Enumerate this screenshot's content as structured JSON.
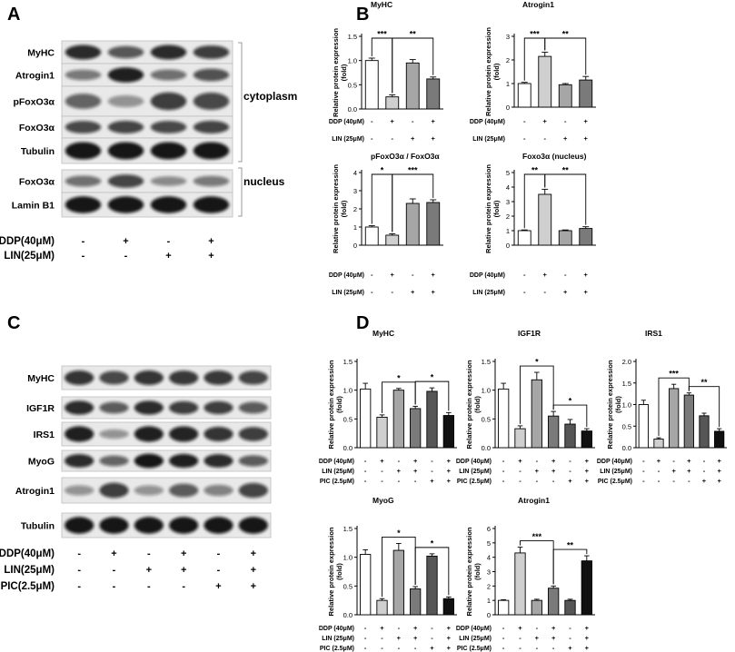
{
  "panel_letters": [
    "A",
    "B",
    "C",
    "D"
  ],
  "panelA": {
    "rows": [
      "MyHC",
      "Atrogin1",
      "pFoxO3α",
      "FoxO3α",
      "Tubulin",
      "FoxO3α",
      "Lamin B1"
    ],
    "group_cytoplasm": "cytoplasm",
    "group_nucleus": "nucleus",
    "treatments": [
      {
        "label": "DDP(40μM)",
        "signs": [
          "-",
          "+",
          "-",
          "+"
        ]
      },
      {
        "label": "LIN(25μM)",
        "signs": [
          "-",
          "-",
          "+",
          "+"
        ]
      }
    ],
    "band_intensity": [
      [
        0.85,
        0.62,
        0.85,
        0.75
      ],
      [
        0.45,
        0.9,
        0.5,
        0.65
      ],
      [
        0.55,
        0.3,
        0.75,
        0.7
      ],
      [
        0.7,
        0.72,
        0.7,
        0.72
      ],
      [
        0.95,
        0.95,
        0.95,
        0.95
      ],
      [
        0.5,
        0.72,
        0.35,
        0.45
      ],
      [
        0.95,
        0.95,
        0.95,
        0.95
      ]
    ]
  },
  "panelC": {
    "rows": [
      "MyHC",
      "IGF1R",
      "IRS1",
      "MyoG",
      "Atrogin1",
      "Tubulin"
    ],
    "treatments": [
      {
        "label": "DDP(40μM)",
        "signs": [
          "-",
          "+",
          "-",
          "+",
          "-",
          "+"
        ]
      },
      {
        "label": "LIN(25μM)",
        "signs": [
          "-",
          "-",
          "+",
          "+",
          "-",
          "+"
        ]
      },
      {
        "label": "PIC(2.5μM)",
        "signs": [
          "-",
          "-",
          "-",
          "-",
          "+",
          "+"
        ]
      }
    ],
    "band_intensity": [
      [
        0.8,
        0.7,
        0.8,
        0.78,
        0.78,
        0.72
      ],
      [
        0.85,
        0.6,
        0.85,
        0.75,
        0.75,
        0.6
      ],
      [
        0.9,
        0.3,
        0.9,
        0.88,
        0.8,
        0.75
      ],
      [
        0.85,
        0.55,
        0.95,
        0.9,
        0.85,
        0.6
      ],
      [
        0.3,
        0.75,
        0.3,
        0.6,
        0.4,
        0.72
      ],
      [
        0.95,
        0.95,
        0.95,
        0.95,
        0.95,
        0.95
      ]
    ]
  },
  "chart_data": [
    {
      "type": "bar",
      "title": "MyHC",
      "ylabel": "Relative protein expression\n(fold)",
      "ylim": [
        0,
        1.5
      ],
      "yticks": [
        "0.0",
        "0.5",
        "1.0",
        "1.5"
      ],
      "values": [
        1.0,
        0.25,
        0.95,
        0.62
      ],
      "errors": [
        0.05,
        0.04,
        0.07,
        0.04
      ],
      "treatments": [
        {
          "label": "DDP (40μM)",
          "signs": [
            "-",
            "+",
            "-",
            "+"
          ]
        },
        {
          "label": "LIN (25μM)",
          "signs": [
            "-",
            "-",
            "+",
            "+"
          ]
        }
      ],
      "sig": [
        {
          "a": 0,
          "b": 1,
          "label": "***"
        },
        {
          "a": 1,
          "b": 3,
          "label": "**"
        }
      ]
    },
    {
      "type": "bar",
      "title": "Atrogin1",
      "ylabel": "Relative protein expression\n(fold)",
      "ylim": [
        0,
        3
      ],
      "yticks": [
        "0",
        "1",
        "2",
        "3"
      ],
      "values": [
        1.0,
        2.15,
        0.95,
        1.15
      ],
      "errors": [
        0.05,
        0.18,
        0.05,
        0.15
      ],
      "treatments": [
        {
          "label": "DDP (40μM)",
          "signs": [
            "-",
            "+",
            "-",
            "+"
          ]
        },
        {
          "label": "LIN (25μM)",
          "signs": [
            "-",
            "-",
            "+",
            "+"
          ]
        }
      ],
      "sig": [
        {
          "a": 0,
          "b": 1,
          "label": "***"
        },
        {
          "a": 1,
          "b": 3,
          "label": "**"
        }
      ]
    },
    {
      "type": "bar",
      "title": "pFoxO3α / FoxO3α",
      "ylabel": "Relative protein expression\n(fold)",
      "ylim": [
        0,
        4
      ],
      "yticks": [
        "0",
        "1",
        "2",
        "3",
        "4"
      ],
      "values": [
        1.0,
        0.55,
        2.3,
        2.35
      ],
      "errors": [
        0.07,
        0.08,
        0.25,
        0.15
      ],
      "treatments": [
        {
          "label": "DDP (40μM)",
          "signs": [
            "-",
            "+",
            "-",
            "+"
          ]
        },
        {
          "label": "LIN (25μM)",
          "signs": [
            "-",
            "-",
            "+",
            "+"
          ]
        }
      ],
      "sig": [
        {
          "a": 0,
          "b": 1,
          "label": "*"
        },
        {
          "a": 1,
          "b": 3,
          "label": "***"
        }
      ]
    },
    {
      "type": "bar",
      "title": "Foxo3α (nucleus)",
      "ylabel": "Relative protein expression\n(fold)",
      "ylim": [
        0,
        5
      ],
      "yticks": [
        "0",
        "1",
        "2",
        "3",
        "4",
        "5"
      ],
      "values": [
        1.0,
        3.5,
        1.0,
        1.15
      ],
      "errors": [
        0.05,
        0.35,
        0.05,
        0.12
      ],
      "treatments": [
        {
          "label": "DDP (40μM)",
          "signs": [
            "-",
            "+",
            "-",
            "+"
          ]
        },
        {
          "label": "LIN (25μM)",
          "signs": [
            "-",
            "-",
            "+",
            "+"
          ]
        }
      ],
      "sig": [
        {
          "a": 0,
          "b": 1,
          "label": "**"
        },
        {
          "a": 1,
          "b": 3,
          "label": "**"
        }
      ]
    },
    {
      "type": "bar",
      "title": "MyHC",
      "ylabel": "Relative protein expression\n(fold)",
      "ylim": [
        0,
        1.5
      ],
      "yticks": [
        "0.0",
        "0.5",
        "1.0",
        "1.5"
      ],
      "values": [
        1.02,
        0.53,
        1.0,
        0.68,
        0.98,
        0.56
      ],
      "errors": [
        0.1,
        0.04,
        0.03,
        0.04,
        0.06,
        0.05
      ],
      "treatments": [
        {
          "label": "DDP (40μM)",
          "signs": [
            "-",
            "+",
            "-",
            "+",
            "-",
            "+"
          ]
        },
        {
          "label": "LIN (25μM)",
          "signs": [
            "-",
            "-",
            "+",
            "+",
            "-",
            "+"
          ]
        },
        {
          "label": "PIC (2.5μM)",
          "signs": [
            "-",
            "-",
            "-",
            "-",
            "+",
            "+"
          ]
        }
      ],
      "sig": [
        {
          "a": 1,
          "b": 3,
          "label": "*"
        },
        {
          "a": 3,
          "b": 5,
          "label": "*"
        }
      ]
    },
    {
      "type": "bar",
      "title": "IGF1R",
      "ylabel": "Relative protein expression\n(fold)",
      "ylim": [
        0,
        1.5
      ],
      "yticks": [
        "0.0",
        "0.5",
        "1.0",
        "1.5"
      ],
      "values": [
        1.02,
        0.33,
        1.18,
        0.55,
        0.41,
        0.29
      ],
      "errors": [
        0.1,
        0.05,
        0.13,
        0.08,
        0.08,
        0.04
      ],
      "treatments": [
        {
          "label": "DDP (40μM)",
          "signs": [
            "-",
            "+",
            "-",
            "+",
            "-",
            "+"
          ]
        },
        {
          "label": "LIN (25μM)",
          "signs": [
            "-",
            "-",
            "+",
            "+",
            "-",
            "+"
          ]
        },
        {
          "label": "PIC (2.5μM)",
          "signs": [
            "-",
            "-",
            "-",
            "-",
            "+",
            "+"
          ]
        }
      ],
      "sig": [
        {
          "a": 1,
          "b": 3,
          "label": "*"
        },
        {
          "a": 3,
          "b": 5,
          "label": "*"
        }
      ]
    },
    {
      "type": "bar",
      "title": "IRS1",
      "ylabel": "Relative protein expression\n(fold)",
      "ylim": [
        0,
        2.0
      ],
      "yticks": [
        "0.0",
        "0.5",
        "1.0",
        "1.5",
        "2.0"
      ],
      "values": [
        1.0,
        0.2,
        1.37,
        1.22,
        0.74,
        0.38
      ],
      "errors": [
        0.1,
        0.03,
        0.1,
        0.05,
        0.06,
        0.06
      ],
      "treatments": [
        {
          "label": "DDP (40μM)",
          "signs": [
            "-",
            "+",
            "-",
            "+",
            "-",
            "+"
          ]
        },
        {
          "label": "LIN (25μM)",
          "signs": [
            "-",
            "-",
            "+",
            "+",
            "-",
            "+"
          ]
        },
        {
          "label": "PIC (2.5μM)",
          "signs": [
            "-",
            "-",
            "-",
            "-",
            "+",
            "+"
          ]
        }
      ],
      "sig": [
        {
          "a": 1,
          "b": 3,
          "label": "***"
        },
        {
          "a": 3,
          "b": 5,
          "label": "**"
        }
      ]
    },
    {
      "type": "bar",
      "title": "MyoG",
      "ylabel": "Relative protein expression\n(fold)",
      "ylim": [
        0,
        1.5
      ],
      "yticks": [
        "0.0",
        "0.5",
        "1.0",
        "1.5"
      ],
      "values": [
        1.05,
        0.25,
        1.12,
        0.45,
        1.02,
        0.28
      ],
      "errors": [
        0.08,
        0.03,
        0.12,
        0.04,
        0.04,
        0.03
      ],
      "treatments": [
        {
          "label": "DDP (40μM)",
          "signs": [
            "-",
            "+",
            "-",
            "+",
            "-",
            "+"
          ]
        },
        {
          "label": "LIN (25μM)",
          "signs": [
            "-",
            "-",
            "+",
            "+",
            "-",
            "+"
          ]
        },
        {
          "label": "PIC (2.5μM)",
          "signs": [
            "-",
            "-",
            "-",
            "-",
            "+",
            "+"
          ]
        }
      ],
      "sig": [
        {
          "a": 1,
          "b": 3,
          "label": "*"
        },
        {
          "a": 3,
          "b": 5,
          "label": "*"
        }
      ]
    },
    {
      "type": "bar",
      "title": "Atrogin1",
      "ylabel": "Relative protein expression\n(fold)",
      "ylim": [
        0,
        6
      ],
      "yticks": [
        "0",
        "1",
        "2",
        "3",
        "4",
        "5",
        "6"
      ],
      "values": [
        1.0,
        4.3,
        1.0,
        1.85,
        1.0,
        3.75
      ],
      "errors": [
        0.05,
        0.4,
        0.08,
        0.15,
        0.08,
        0.35
      ],
      "treatments": [
        {
          "label": "DDP (40μM)",
          "signs": [
            "-",
            "+",
            "-",
            "+",
            "-",
            "+"
          ]
        },
        {
          "label": "LIN (25μM)",
          "signs": [
            "-",
            "-",
            "+",
            "+",
            "-",
            "+"
          ]
        },
        {
          "label": "PIC (2.5μM)",
          "signs": [
            "-",
            "-",
            "-",
            "-",
            "+",
            "+"
          ]
        }
      ],
      "sig": [
        {
          "a": 1,
          "b": 3,
          "label": "***"
        },
        {
          "a": 3,
          "b": 5,
          "label": "**"
        }
      ]
    }
  ],
  "bar_fills": [
    "#ffffff",
    "#cfcfcf",
    "#a6a6a6",
    "#7a7a7a",
    "#565656",
    "#111111"
  ]
}
